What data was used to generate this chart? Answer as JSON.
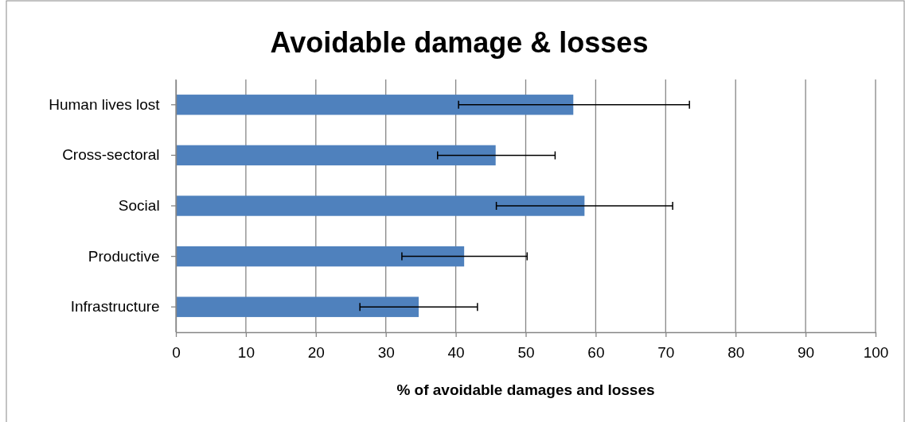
{
  "chart_data": {
    "type": "bar",
    "orientation": "horizontal",
    "title": "Avoidable damage & losses",
    "xlabel": "% of avoidable damages and losses",
    "categories": [
      "Human lives lost",
      "Cross-sectoral",
      "Social",
      "Productive",
      "Infrastructure"
    ],
    "values": [
      56.8,
      45.7,
      58.4,
      41.2,
      34.7
    ],
    "errors": [
      [
        40.4,
        73.4
      ],
      [
        37.4,
        54.2
      ],
      [
        45.8,
        71.0
      ],
      [
        32.3,
        50.2
      ],
      [
        26.3,
        43.1
      ]
    ],
    "color": "#4f81bd",
    "xlim": [
      0,
      100
    ],
    "xticks": [
      0,
      10,
      20,
      30,
      40,
      50,
      60,
      70,
      80,
      90,
      100
    ],
    "grid": "x"
  }
}
